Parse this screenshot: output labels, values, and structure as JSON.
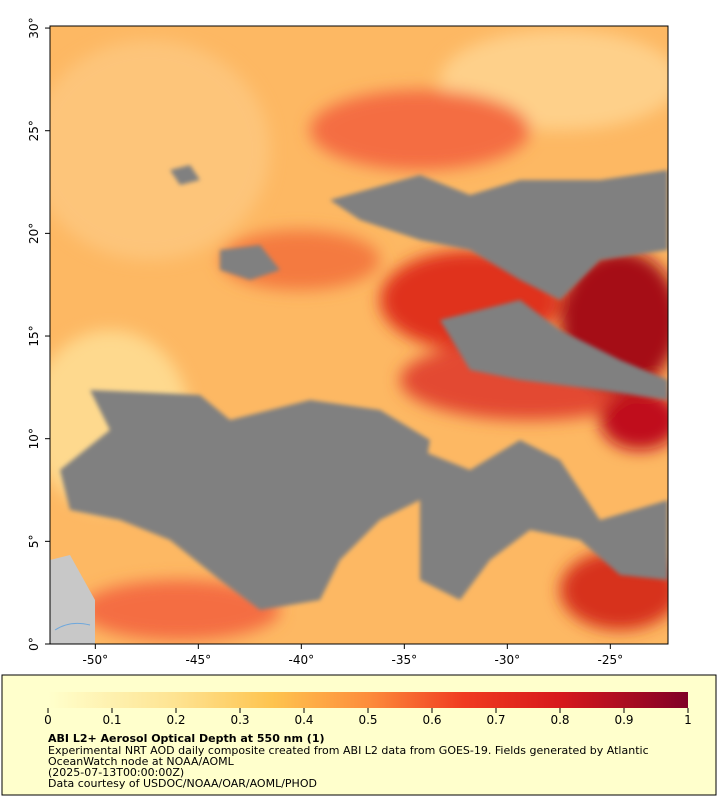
{
  "map": {
    "xlim": [
      -52.2,
      -22.2
    ],
    "ylim": [
      0,
      30.1
    ],
    "xticks": [
      {
        "value": -50,
        "label": "-50°"
      },
      {
        "value": -45,
        "label": "-45°"
      },
      {
        "value": -40,
        "label": "-40°"
      },
      {
        "value": -35,
        "label": "-35°"
      },
      {
        "value": -30,
        "label": "-30°"
      },
      {
        "value": -25,
        "label": "-25°"
      }
    ],
    "yticks": [
      {
        "value": 0,
        "label": "0°"
      },
      {
        "value": 5,
        "label": "5°"
      },
      {
        "value": 10,
        "label": "10°"
      },
      {
        "value": 15,
        "label": "15°"
      },
      {
        "value": 20,
        "label": "20°"
      },
      {
        "value": 25,
        "label": "25°"
      },
      {
        "value": 30,
        "label": "30°"
      }
    ]
  },
  "colorbar": {
    "lim": [
      0,
      1
    ],
    "ticks": [
      0,
      0.1,
      0.2,
      0.3,
      0.4,
      0.5,
      0.6,
      0.7,
      0.8,
      0.9,
      1
    ]
  },
  "legend": {
    "title": "ABI L2+ Aerosol Optical Depth at 550 nm (1)",
    "lines": [
      "Experimental NRT AOD daily composite created from ABI L2 data from GOES-19. Fields generated by Atlantic",
      "OceanWatch node at NOAA/AOML",
      "(2025-07-13T00:00:00Z)",
      "Data courtesy of USDOC/NOAA/OAR/AOML/PHOD"
    ]
  }
}
